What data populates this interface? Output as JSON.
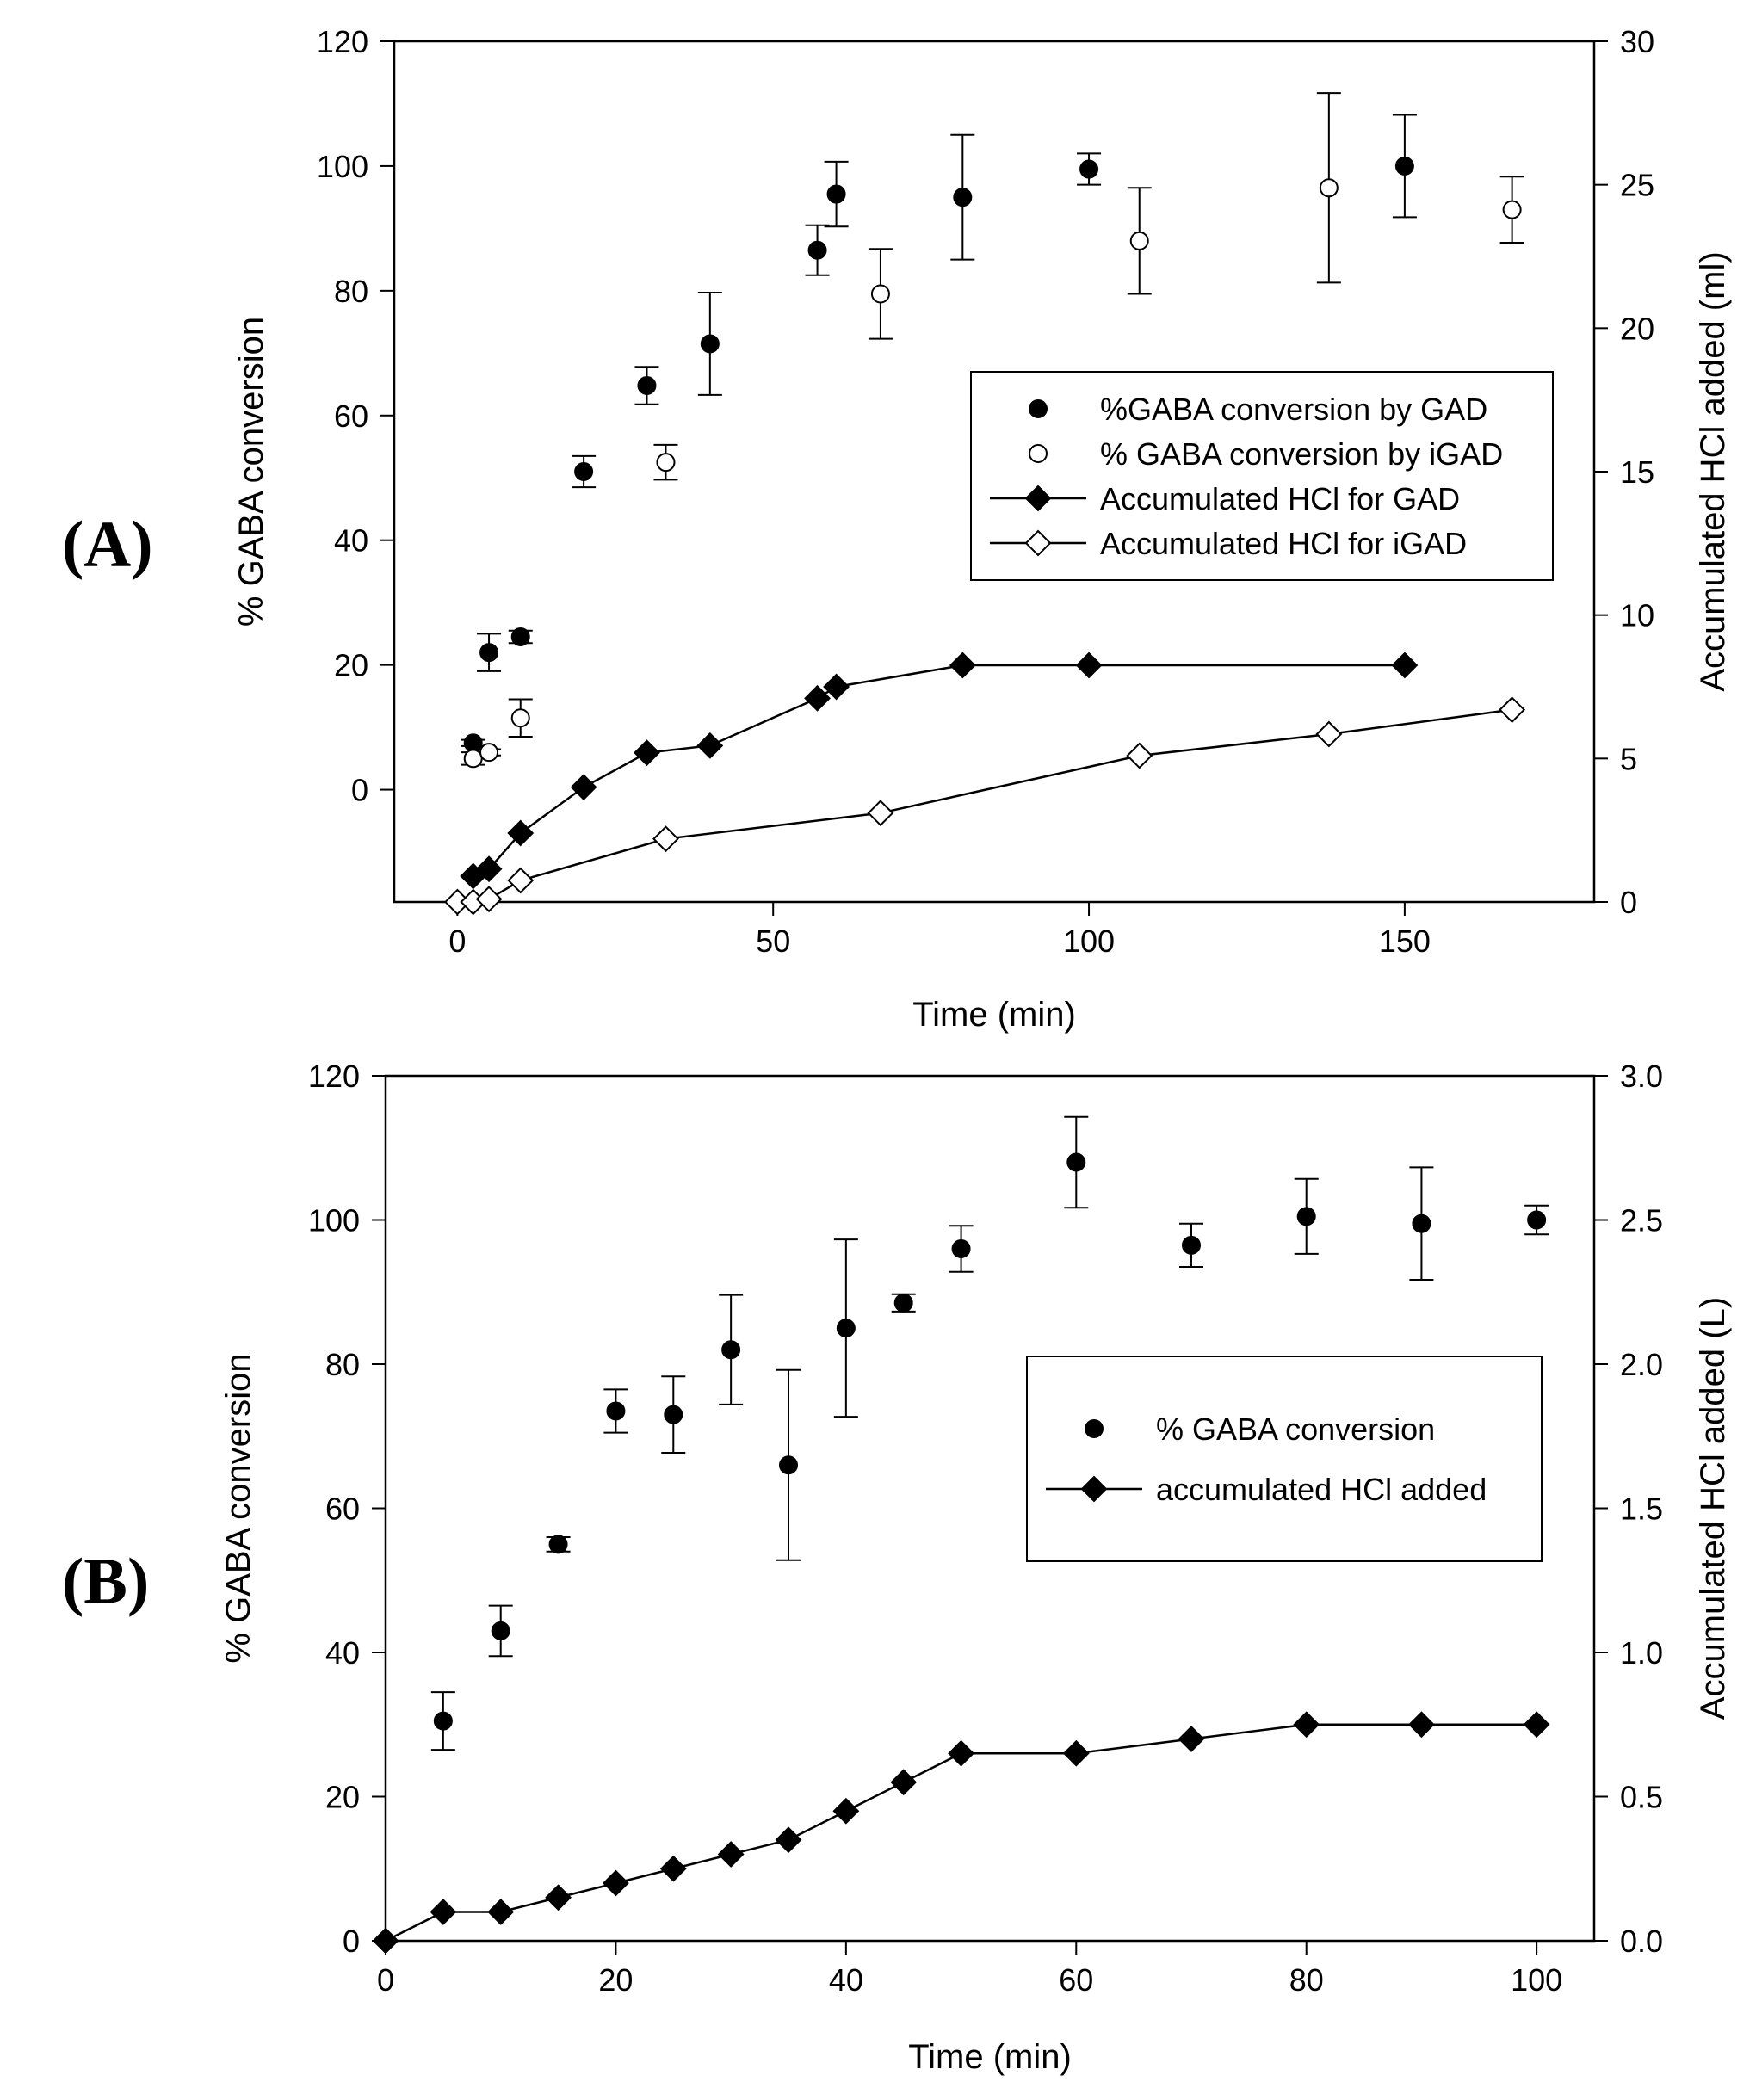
{
  "panel_labels": [
    "(A)",
    "(B)"
  ],
  "chart_data": [
    {
      "type": "scatter",
      "panel": "(A)",
      "xlabel": "Time (min)",
      "ylabel": "% GABA conversion",
      "y2label": "Accumulated HCl added (ml)",
      "xlim": [
        -10,
        180
      ],
      "ylim": [
        -18,
        120
      ],
      "y2lim": [
        0,
        30
      ],
      "xticks": [
        0,
        50,
        100,
        150
      ],
      "yticks": [
        0,
        20,
        40,
        60,
        80,
        100,
        120
      ],
      "y2ticks": [
        0,
        5,
        10,
        15,
        20,
        25,
        30
      ],
      "legend": {
        "position": "center-right",
        "entries": [
          {
            "label": "%GABA conversion by GAD",
            "marker": "filled-circle",
            "line": false
          },
          {
            "label": "% GABA conversion by iGAD",
            "marker": "open-circle",
            "line": false
          },
          {
            "label": "Accumulated HCl for GAD",
            "marker": "filled-diamond",
            "line": true
          },
          {
            "label": "Accumulated HCl for iGAD",
            "marker": "open-diamond",
            "line": true
          }
        ]
      },
      "series": [
        {
          "name": "%GABA conversion by GAD",
          "axis": "left",
          "marker": "filled-circle",
          "line": false,
          "x": [
            2.5,
            5,
            10,
            20,
            30,
            40,
            57,
            60,
            80,
            100,
            150
          ],
          "y": [
            7.5,
            22,
            24.5,
            51,
            64.8,
            71.5,
            86.5,
            95.5,
            95,
            99.5,
            100
          ],
          "err": [
            0.5,
            3,
            1,
            2.5,
            3,
            8.2,
            4,
            5.2,
            10,
            2.5,
            8.2
          ]
        },
        {
          "name": "% GABA conversion by iGAD",
          "axis": "left",
          "marker": "open-circle",
          "line": false,
          "x": [
            2.5,
            5,
            10,
            33,
            67,
            108,
            138,
            167
          ],
          "y": [
            5,
            6,
            11.5,
            52.5,
            79.5,
            88,
            96.5,
            93
          ],
          "err": [
            1,
            0.5,
            3,
            2.8,
            7.2,
            8.5,
            15.2,
            5.3
          ]
        },
        {
          "name": "Accumulated HCl for GAD",
          "axis": "right",
          "marker": "filled-diamond",
          "line": true,
          "x": [
            2.5,
            5,
            10,
            20,
            30,
            40,
            57,
            60,
            80,
            100,
            150
          ],
          "y": [
            0.9,
            1.15,
            2.4,
            4,
            5.2,
            5.45,
            7.1,
            7.5,
            8.25,
            8.25,
            8.25
          ]
        },
        {
          "name": "Accumulated HCl for iGAD",
          "axis": "right",
          "marker": "open-diamond",
          "line": true,
          "x": [
            0,
            2.5,
            5,
            10,
            33,
            67,
            108,
            138,
            167
          ],
          "y": [
            0,
            0,
            0.1,
            0.75,
            2.2,
            3.1,
            5.1,
            5.85,
            6.7
          ]
        }
      ]
    },
    {
      "type": "scatter",
      "panel": "(B)",
      "xlabel": "Time (min)",
      "ylabel": "% GABA conversion",
      "y2label": "Accumulated HCl added (L)",
      "xlim": [
        0,
        105
      ],
      "ylim": [
        0,
        120
      ],
      "y2lim": [
        0,
        3
      ],
      "xticks": [
        0,
        20,
        40,
        60,
        80,
        100
      ],
      "yticks": [
        0,
        20,
        40,
        60,
        80,
        100,
        120
      ],
      "y2ticks": [
        "0.0",
        "0.5",
        "1.0",
        "1.5",
        "2.0",
        "2.5",
        "3.0"
      ],
      "legend": {
        "position": "center-right",
        "entries": [
          {
            "label": "% GABA conversion",
            "marker": "filled-circle",
            "line": false
          },
          {
            "label": "accumulated HCl added",
            "marker": "filled-diamond",
            "line": true
          }
        ]
      },
      "series": [
        {
          "name": "% GABA conversion",
          "axis": "left",
          "marker": "filled-circle",
          "line": false,
          "x": [
            5,
            10,
            15,
            20,
            25,
            30,
            35,
            40,
            45,
            50,
            60,
            70,
            80,
            90,
            100
          ],
          "y": [
            30.5,
            43,
            55,
            73.5,
            73,
            82,
            66,
            85,
            88.5,
            96,
            108,
            96.5,
            100.5,
            99.5,
            100
          ],
          "err": [
            4,
            3.5,
            1,
            3,
            5.3,
            7.6,
            13.2,
            12.3,
            1.2,
            3.2,
            6.3,
            3,
            5.2,
            7.8,
            2
          ]
        },
        {
          "name": "accumulated HCl added",
          "axis": "right",
          "marker": "filled-diamond",
          "line": true,
          "x": [
            0,
            5,
            10,
            15,
            20,
            25,
            30,
            35,
            40,
            45,
            50,
            60,
            70,
            80,
            90,
            100
          ],
          "y": [
            0,
            0.1,
            0.1,
            0.15,
            0.2,
            0.25,
            0.3,
            0.35,
            0.45,
            0.55,
            0.65,
            0.65,
            0.7,
            0.75,
            0.75,
            0.75
          ]
        }
      ]
    }
  ]
}
